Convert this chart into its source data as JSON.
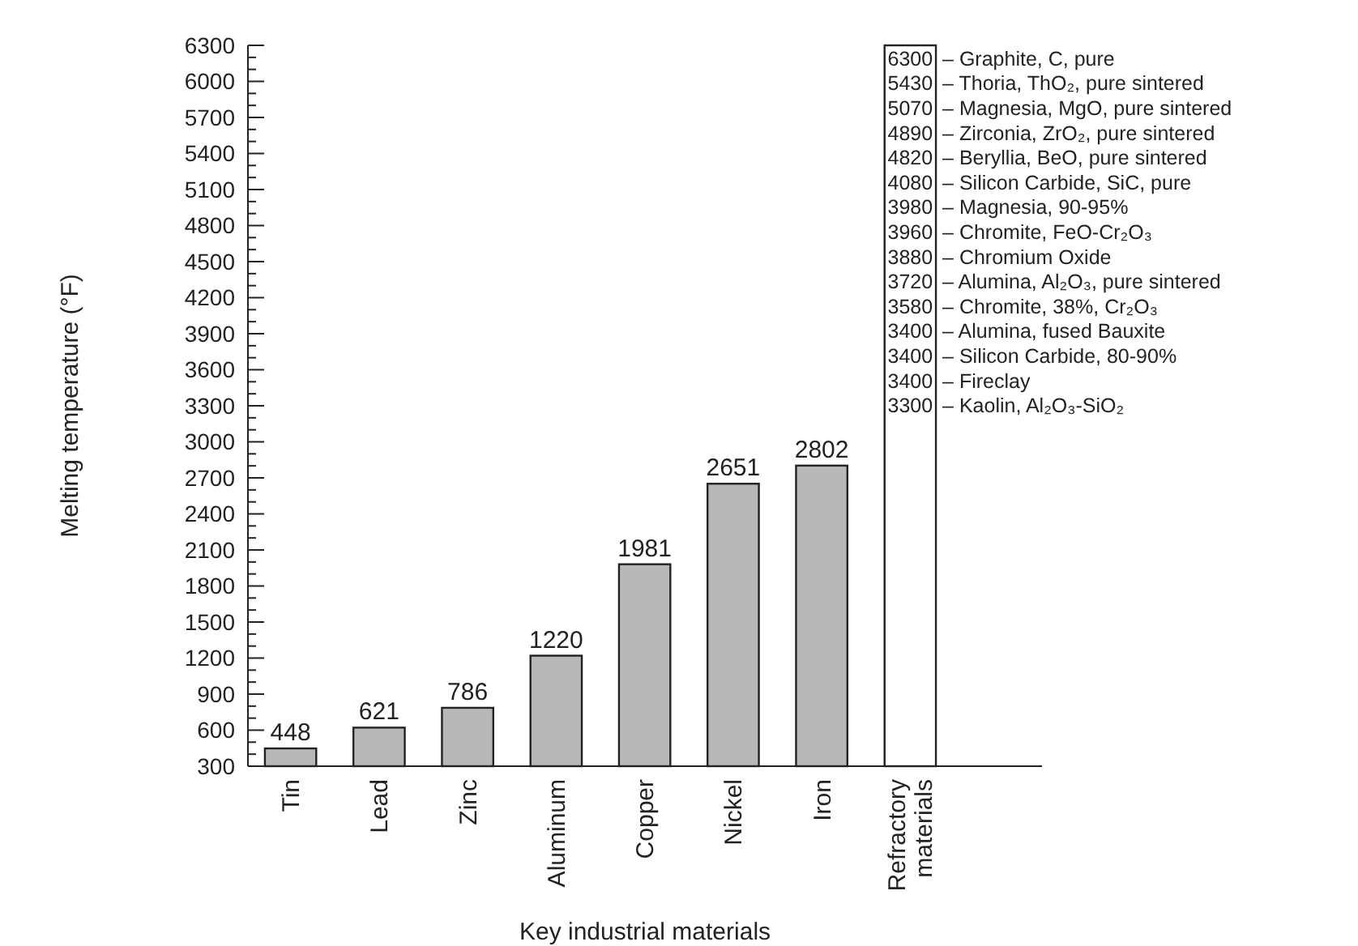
{
  "chart_data": {
    "type": "bar",
    "xlabel": "Key industrial materials",
    "ylabel": "Melting temperature (°F)",
    "categories": [
      "Tin",
      "Lead",
      "Zinc",
      "Aluminum",
      "Copper",
      "Nickel",
      "Iron",
      "Refractory materials"
    ],
    "values": [
      448,
      621,
      786,
      1220,
      1981,
      2651,
      2802,
      6300
    ],
    "colors": [
      "#b8b8b8",
      "#b8b8b8",
      "#b8b8b8",
      "#b8b8b8",
      "#b8b8b8",
      "#b8b8b8",
      "#b8b8b8",
      "#ffffff"
    ],
    "value_labels": [
      "448",
      "621",
      "786",
      "1220",
      "1981",
      "2651",
      "2802",
      null
    ],
    "ylim": [
      300,
      6300
    ],
    "yticks": [
      300,
      {
        "value": 400,
        "label": null
      },
      {
        "value": 500,
        "label": null
      },
      600,
      {
        "value": 700,
        "label": null
      },
      {
        "value": 800,
        "label": null
      },
      900,
      {
        "value": 1000,
        "label": null
      },
      {
        "value": 1100,
        "label": null
      },
      1200,
      {
        "value": 1300,
        "label": null
      },
      {
        "value": 1400,
        "label": null
      },
      1500,
      {
        "value": 1600,
        "label": null
      },
      {
        "value": 1700,
        "label": null
      },
      1800,
      {
        "value": 1900,
        "label": null
      },
      {
        "value": 2000,
        "label": null
      },
      2100,
      {
        "value": 2200,
        "label": null
      },
      {
        "value": 2300,
        "label": null
      },
      2400,
      {
        "value": 2500,
        "label": null
      },
      {
        "value": 2600,
        "label": null
      },
      2700,
      {
        "value": 2800,
        "label": null
      },
      {
        "value": 2900,
        "label": null
      },
      3000,
      {
        "value": 3100,
        "label": null
      },
      {
        "value": 3200,
        "label": null
      },
      3300,
      {
        "value": 3400,
        "label": null
      },
      {
        "value": 3500,
        "label": null
      },
      3600,
      {
        "value": 3700,
        "label": null
      },
      {
        "value": 3800,
        "label": null
      },
      3900,
      {
        "value": 4000,
        "label": null
      },
      {
        "value": 4100,
        "label": null
      },
      4200,
      {
        "value": 4300,
        "label": null
      },
      {
        "value": 4400,
        "label": null
      },
      4500,
      {
        "value": 4600,
        "label": null
      },
      {
        "value": 4700,
        "label": null
      },
      4800,
      {
        "value": 4900,
        "label": null
      },
      {
        "value": 5000,
        "label": null
      },
      5100,
      {
        "value": 5200,
        "label": null
      },
      {
        "value": 5300,
        "label": null
      },
      5400,
      {
        "value": 5500,
        "label": null
      },
      {
        "value": 5600,
        "label": null
      },
      5700,
      {
        "value": 5800,
        "label": null
      },
      {
        "value": 5900,
        "label": null
      },
      6000,
      {
        "value": 6100,
        "label": null
      },
      {
        "value": 6200,
        "label": null
      },
      6300
    ],
    "annotations": [
      "6300 – Graphite, C, pure",
      "5430 – Thoria, ThO₂, pure sintered",
      "5070 – Magnesia, MgO, pure sintered",
      "4890 – Zirconia, ZrO₂, pure sintered",
      "4820 – Beryllia, BeO, pure sintered",
      "4080 – Silicon Carbide, SiC, pure",
      "3980 – Magnesia, 90-95%",
      "3960 – Chromite, FeO-Cr₂O₃",
      "3880 – Chromium Oxide",
      "3720 – Alumina, Al₂O₃, pure sintered",
      "3580 – Chromite, 38%, Cr₂O₃",
      "3400 – Alumina, fused Bauxite",
      "3400 – Silicon Carbide, 80-90%",
      "3400 – Fireclay",
      "3300 – Kaolin, Al₂O₃-SiO₂"
    ],
    "grid": false
  }
}
